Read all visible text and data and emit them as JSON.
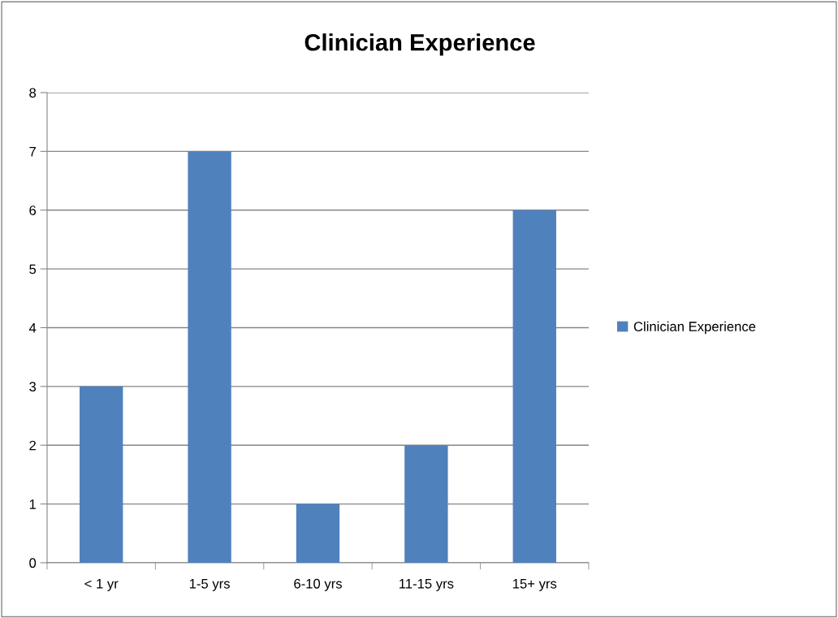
{
  "chart_data": {
    "type": "bar",
    "title": "Clinician Experience",
    "categories": [
      "< 1 yr",
      "1-5 yrs",
      "6-10 yrs",
      "11-15 yrs",
      "15+ yrs"
    ],
    "series": [
      {
        "name": "Clinician Experience",
        "color": "#4f81bd",
        "values": [
          3,
          7,
          1,
          2,
          6
        ]
      }
    ],
    "ylim": [
      0,
      8
    ],
    "yticks": [
      0,
      1,
      2,
      3,
      4,
      5,
      6,
      7,
      8
    ],
    "grid": "y",
    "legend": "right"
  }
}
